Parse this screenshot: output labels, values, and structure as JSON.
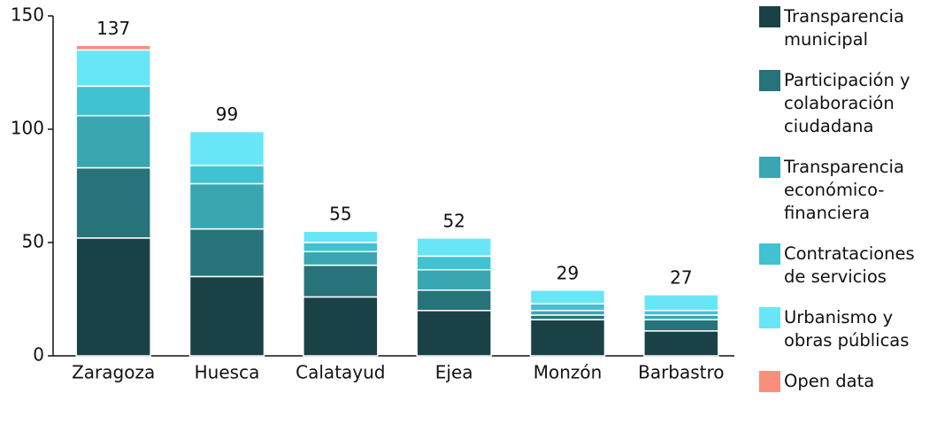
{
  "chart_data": {
    "type": "stacked_bar",
    "categories": [
      "Zaragoza",
      "Huesca",
      "Calatayud",
      "Ejea",
      "Monzón",
      "Barbastro"
    ],
    "series": [
      {
        "name": "Transparencia municipal",
        "color": "#1a4246",
        "values": [
          52,
          35,
          26,
          20,
          16,
          11
        ]
      },
      {
        "name": "Participación y colaboración ciudadana",
        "color": "#27737a",
        "values": [
          31,
          21,
          14,
          9,
          2,
          5
        ]
      },
      {
        "name": "Transparencia económico-financiera",
        "color": "#3aa6b2",
        "values": [
          23,
          20,
          6,
          9,
          2,
          2
        ]
      },
      {
        "name": "Contrataciones de servicios",
        "color": "#40c2d3",
        "values": [
          13,
          8,
          4,
          6,
          3,
          2
        ]
      },
      {
        "name": "Urbanismo y obras públicas",
        "color": "#68e6f8",
        "values": [
          16,
          15,
          5,
          8,
          6,
          7
        ]
      },
      {
        "name": "Open data",
        "color": "#f98e7d",
        "values": [
          2,
          0,
          0,
          0,
          0,
          0
        ]
      }
    ],
    "totals": [
      137,
      99,
      55,
      52,
      29,
      27
    ],
    "ylim": [
      0,
      150
    ],
    "yticks": [
      0,
      50,
      100,
      150
    ],
    "grid": false,
    "legend": "right"
  }
}
